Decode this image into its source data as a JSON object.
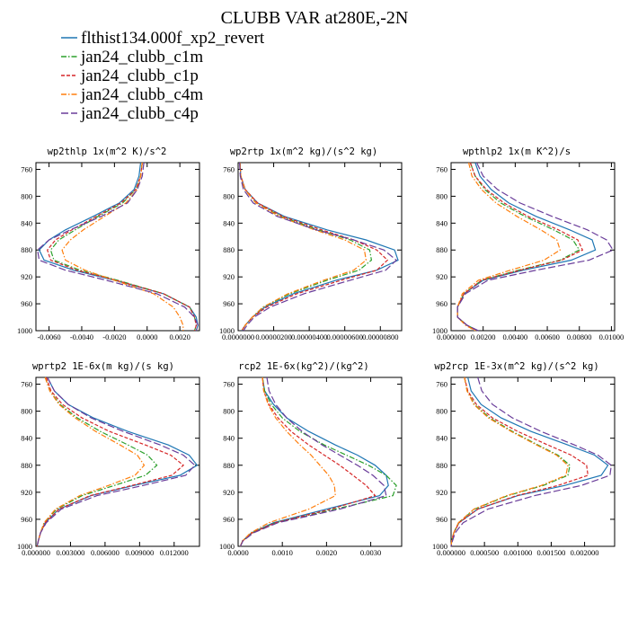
{
  "figure_title": "CLUBB VAR at280E,-2N",
  "legend": [
    {
      "label": "flthist134.000f_xp2_revert",
      "color": "#1f77b4",
      "dash": "solid"
    },
    {
      "label": "jan24_clubb_c1m",
      "color": "#2ca02c",
      "dash": "dashdot"
    },
    {
      "label": "jan24_clubb_c1p",
      "color": "#d62728",
      "dash": "dashed"
    },
    {
      "label": "jan24_clubb_c4m",
      "color": "#ff7f0e",
      "dash": "dashdot"
    },
    {
      "label": "jan24_clubb_c4p",
      "color": "#6a3d9a",
      "dash": "longdash"
    }
  ],
  "chart_data": [
    {
      "type": "line",
      "title": "wp2thlp  1x(m^2 K)/s^2",
      "ylim": [
        1000,
        750
      ],
      "yticks": [
        "760",
        "800",
        "840",
        "880",
        "920",
        "960",
        "1000"
      ],
      "yticks_values": [
        760,
        800,
        840,
        880,
        920,
        960,
        1000
      ],
      "xlim": [
        -0.0068,
        0.0032
      ],
      "xticks": [
        "-0.0060",
        "-0.0040",
        "-0.0020",
        "0.0000",
        "0.0020"
      ],
      "xticks_values": [
        -0.006,
        -0.004,
        -0.002,
        0.0,
        0.002
      ],
      "y": [
        750,
        770,
        790,
        810,
        830,
        850,
        865,
        880,
        895,
        910,
        925,
        945,
        965,
        980,
        992,
        1000
      ],
      "series": [
        {
          "name": "flthist134.000f_xp2_revert",
          "values": [
            -0.0004,
            -0.0005,
            -0.0008,
            -0.0017,
            -0.0033,
            -0.005,
            -0.006,
            -0.0066,
            -0.0063,
            -0.0045,
            -0.002,
            0.001,
            0.0026,
            0.003,
            0.0031,
            0.003
          ]
        },
        {
          "name": "jan24_clubb_c1m",
          "values": [
            -0.0003,
            -0.0004,
            -0.0007,
            -0.0015,
            -0.003,
            -0.0044,
            -0.0054,
            -0.0059,
            -0.0057,
            -0.0041,
            -0.0018,
            0.001,
            0.0026,
            0.0029,
            0.003,
            0.0029
          ]
        },
        {
          "name": "jan24_clubb_c1p",
          "values": [
            -0.0003,
            -0.0004,
            -0.0007,
            -0.0016,
            -0.0031,
            -0.0046,
            -0.0056,
            -0.0061,
            -0.0059,
            -0.0043,
            -0.0019,
            0.001,
            0.0026,
            0.0029,
            0.003,
            0.0029
          ]
        },
        {
          "name": "jan24_clubb_c4m",
          "values": [
            -0.0003,
            -0.0004,
            -0.0006,
            -0.0013,
            -0.0026,
            -0.0039,
            -0.0047,
            -0.0052,
            -0.005,
            -0.0038,
            -0.002,
            0.0004,
            0.0016,
            0.002,
            0.0022,
            0.0022
          ]
        },
        {
          "name": "jan24_clubb_c4p",
          "values": [
            -0.0002,
            -0.0003,
            -0.0006,
            -0.0012,
            -0.0028,
            -0.0047,
            -0.006,
            -0.0067,
            -0.0066,
            -0.005,
            -0.0025,
            0.0006,
            0.0023,
            0.0029,
            0.0031,
            0.003
          ]
        }
      ]
    },
    {
      "type": "line",
      "title": "wp2rtp  1x(m^2 kg)/(s^2 kg)",
      "ylim": [
        1000,
        750
      ],
      "yticks": [
        "760",
        "800",
        "840",
        "880",
        "920",
        "960",
        "1000"
      ],
      "yticks_values": [
        760,
        800,
        840,
        880,
        920,
        960,
        1000
      ],
      "xlim": [
        0.0,
        9.2e-06
      ],
      "xticks": [
        "0.0000000",
        "0.00000200",
        "0.00000400",
        "0.00000600",
        "0.00000800"
      ],
      "xticks_values": [
        0.0,
        2e-06,
        4e-06,
        6e-06,
        8e-06
      ],
      "y": [
        750,
        770,
        790,
        810,
        830,
        850,
        865,
        880,
        895,
        910,
        925,
        945,
        965,
        980,
        992,
        1000
      ],
      "series": [
        {
          "name": "flthist134.000f_xp2_revert",
          "values": [
            1e-07,
            1.5e-07,
            4e-07,
            1.1e-06,
            2.6e-06,
            5e-06,
            7.2e-06,
            8.8e-06,
            9e-06,
            7.8e-06,
            5.5e-06,
            3.1e-06,
            1.5e-06,
            8e-07,
            4e-07,
            2e-07
          ]
        },
        {
          "name": "jan24_clubb_c1m",
          "values": [
            1e-07,
            1.5e-07,
            3.8e-07,
            1e-06,
            2.4e-06,
            4.5e-06,
            6.3e-06,
            7.4e-06,
            7.5e-06,
            6.8e-06,
            5e-06,
            2.9e-06,
            1.4e-06,
            8e-07,
            4e-07,
            2e-07
          ]
        },
        {
          "name": "jan24_clubb_c1p",
          "values": [
            1e-07,
            1.5e-07,
            4e-07,
            1.1e-06,
            2.5e-06,
            4.7e-06,
            6.5e-06,
            7.8e-06,
            8.4e-06,
            7.8e-06,
            5.8e-06,
            3.3e-06,
            1.6e-06,
            8e-07,
            4e-07,
            2e-07
          ]
        },
        {
          "name": "jan24_clubb_c4m",
          "values": [
            1e-07,
            1.5e-07,
            3.8e-07,
            1e-06,
            2.3e-06,
            4.3e-06,
            6e-06,
            7.1e-06,
            7.2e-06,
            6.5e-06,
            4.8e-06,
            2.8e-06,
            1.4e-06,
            8e-07,
            4e-07,
            2e-07
          ]
        },
        {
          "name": "jan24_clubb_c4p",
          "values": [
            8e-08,
            1.2e-07,
            3e-07,
            8.5e-07,
            2.2e-06,
            4.4e-06,
            6.5e-06,
            8.2e-06,
            8.9e-06,
            8.3e-06,
            6.3e-06,
            3.7e-06,
            1.8e-06,
            9e-07,
            5e-07,
            3e-07
          ]
        }
      ]
    },
    {
      "type": "line",
      "title": "wpthlp2  1x(m K^2)/s",
      "ylim": [
        1000,
        750
      ],
      "yticks": [
        "760",
        "800",
        "840",
        "880",
        "920",
        "960",
        "1000"
      ],
      "yticks_values": [
        760,
        800,
        840,
        880,
        920,
        960,
        1000
      ],
      "xlim": [
        0.0,
        0.0102
      ],
      "xticks": [
        "0.000000",
        "0.00200",
        "0.00400",
        "0.00600",
        "0.00800",
        "0.01000"
      ],
      "xticks_values": [
        0.0,
        0.002,
        0.004,
        0.006,
        0.008,
        0.01
      ],
      "y": [
        750,
        770,
        790,
        810,
        830,
        850,
        865,
        880,
        895,
        910,
        925,
        945,
        965,
        980,
        992,
        1000
      ],
      "series": [
        {
          "name": "flthist134.000f_xp2_revert",
          "values": [
            0.0015,
            0.0018,
            0.0025,
            0.0036,
            0.0053,
            0.0074,
            0.0088,
            0.009,
            0.0075,
            0.0045,
            0.002,
            0.0008,
            0.0004,
            0.0004,
            0.001,
            0.0017
          ]
        },
        {
          "name": "jan24_clubb_c1m",
          "values": [
            0.0012,
            0.0015,
            0.0021,
            0.0031,
            0.0046,
            0.0064,
            0.0076,
            0.008,
            0.0068,
            0.0042,
            0.0019,
            0.0008,
            0.0004,
            0.0004,
            0.001,
            0.0016
          ]
        },
        {
          "name": "jan24_clubb_c1p",
          "values": [
            0.0012,
            0.0015,
            0.0022,
            0.0033,
            0.0048,
            0.0067,
            0.0079,
            0.0082,
            0.0069,
            0.0043,
            0.0019,
            0.0008,
            0.0004,
            0.0004,
            0.001,
            0.0016
          ]
        },
        {
          "name": "jan24_clubb_c4m",
          "values": [
            0.0011,
            0.0013,
            0.0019,
            0.0028,
            0.0041,
            0.0056,
            0.0066,
            0.0068,
            0.0058,
            0.0037,
            0.0017,
            0.0007,
            0.0004,
            0.0004,
            0.0009,
            0.0015
          ]
        },
        {
          "name": "jan24_clubb_c4p",
          "values": [
            0.0016,
            0.002,
            0.0029,
            0.0043,
            0.0063,
            0.0085,
            0.0097,
            0.0101,
            0.0086,
            0.0053,
            0.0023,
            0.0009,
            0.0004,
            0.0004,
            0.001,
            0.0017
          ]
        }
      ]
    },
    {
      "type": "line",
      "title": "wprtp2  1E-6x(m kg)/(s kg)",
      "ylim": [
        1000,
        750
      ],
      "yticks": [
        "760",
        "800",
        "840",
        "880",
        "920",
        "960",
        "1000"
      ],
      "yticks_values": [
        760,
        800,
        840,
        880,
        920,
        960,
        1000
      ],
      "xlim": [
        0.0,
        0.0142
      ],
      "xticks": [
        "0.000000",
        "0.003000",
        "0.006000",
        "0.009000",
        "0.012000"
      ],
      "xticks_values": [
        0.0,
        0.003,
        0.006,
        0.009,
        0.012
      ],
      "y": [
        750,
        770,
        790,
        810,
        830,
        850,
        865,
        880,
        895,
        910,
        925,
        945,
        965,
        980,
        992,
        1000
      ],
      "series": [
        {
          "name": "flthist134.000f_xp2_revert",
          "values": [
            0.001,
            0.0016,
            0.0028,
            0.005,
            0.008,
            0.0115,
            0.0133,
            0.014,
            0.0125,
            0.0085,
            0.0048,
            0.002,
            0.0008,
            0.0004,
            0.0002,
            0.0001
          ]
        },
        {
          "name": "jan24_clubb_c1m",
          "values": [
            0.0008,
            0.0012,
            0.0021,
            0.0036,
            0.0056,
            0.008,
            0.0097,
            0.0105,
            0.0095,
            0.0068,
            0.004,
            0.0018,
            0.0007,
            0.0004,
            0.0002,
            0.0001
          ]
        },
        {
          "name": "jan24_clubb_c1p",
          "values": [
            0.0009,
            0.0013,
            0.0023,
            0.004,
            0.0064,
            0.0095,
            0.0117,
            0.0128,
            0.0118,
            0.0083,
            0.0047,
            0.002,
            0.0008,
            0.0004,
            0.0002,
            0.0001
          ]
        },
        {
          "name": "jan24_clubb_c4m",
          "values": [
            0.0008,
            0.0012,
            0.002,
            0.0034,
            0.0052,
            0.0073,
            0.0088,
            0.0094,
            0.0086,
            0.0063,
            0.0038,
            0.0017,
            0.0007,
            0.0004,
            0.0002,
            0.0001
          ]
        },
        {
          "name": "jan24_clubb_c4p",
          "values": [
            0.001,
            0.0016,
            0.0028,
            0.0048,
            0.0076,
            0.0108,
            0.0128,
            0.0138,
            0.013,
            0.0093,
            0.0053,
            0.0022,
            0.0009,
            0.0004,
            0.0002,
            0.0001
          ]
        }
      ]
    },
    {
      "type": "line",
      "title": "rcp2  1E-6x(kg^2)/(kg^2)",
      "ylim": [
        1000,
        750
      ],
      "yticks": [
        "760",
        "800",
        "840",
        "880",
        "920",
        "960",
        "1000"
      ],
      "yticks_values": [
        760,
        800,
        840,
        880,
        920,
        960,
        1000
      ],
      "xlim": [
        0.0,
        0.0037
      ],
      "xticks": [
        "0.0000",
        "0.0010",
        "0.0020",
        "0.0030"
      ],
      "xticks_values": [
        0.0,
        0.001,
        0.002,
        0.003
      ],
      "y": [
        750,
        770,
        790,
        810,
        830,
        850,
        865,
        880,
        895,
        910,
        925,
        945,
        965,
        980,
        992,
        1000
      ],
      "series": [
        {
          "name": "flthist134.000f_xp2_revert",
          "values": [
            0.00055,
            0.0006,
            0.0008,
            0.0011,
            0.0016,
            0.0022,
            0.0027,
            0.0031,
            0.00335,
            0.0034,
            0.0032,
            0.002,
            0.0008,
            0.0003,
            0.0001,
            5e-05
          ]
        },
        {
          "name": "jan24_clubb_c1m",
          "values": [
            0.00055,
            0.0006,
            0.00075,
            0.001,
            0.0014,
            0.00195,
            0.00245,
            0.00295,
            0.00335,
            0.00358,
            0.0035,
            0.0022,
            0.00085,
            0.00032,
            0.0001,
            5e-05
          ]
        },
        {
          "name": "jan24_clubb_c1p",
          "values": [
            0.00055,
            0.00058,
            0.0007,
            0.0009,
            0.0012,
            0.0016,
            0.00195,
            0.0023,
            0.0026,
            0.0029,
            0.0031,
            0.0021,
            0.00085,
            0.00032,
            0.0001,
            5e-05
          ]
        },
        {
          "name": "jan24_clubb_c4m",
          "values": [
            0.00055,
            0.00058,
            0.00068,
            0.00085,
            0.0011,
            0.0014,
            0.00165,
            0.00185,
            0.00205,
            0.00218,
            0.0022,
            0.0016,
            0.0007,
            0.00028,
            0.0001,
            5e-05
          ]
        },
        {
          "name": "jan24_clubb_c4p",
          "values": [
            0.00065,
            0.0007,
            0.00085,
            0.0011,
            0.00145,
            0.0019,
            0.0023,
            0.0027,
            0.00305,
            0.0033,
            0.00335,
            0.0023,
            0.0009,
            0.00035,
            0.00011,
            5e-05
          ]
        }
      ]
    },
    {
      "type": "line",
      "title": "wp2rcp  1E-3x(m^2 kg)/(s^2 kg)",
      "ylim": [
        1000,
        750
      ],
      "yticks": [
        "760",
        "800",
        "840",
        "880",
        "920",
        "960",
        "1000"
      ],
      "yticks_values": [
        760,
        800,
        840,
        880,
        920,
        960,
        1000
      ],
      "xlim": [
        0.0,
        0.00245
      ],
      "xticks": [
        "0.000000",
        "0.000500",
        "0.001000",
        "0.001500",
        "0.002000"
      ],
      "xticks_values": [
        0.0,
        0.0005,
        0.001,
        0.0015,
        0.002
      ],
      "y": [
        750,
        770,
        790,
        810,
        830,
        850,
        865,
        880,
        895,
        910,
        925,
        945,
        965,
        980,
        992,
        1000
      ],
      "series": [
        {
          "name": "flthist134.000f_xp2_revert",
          "values": [
            0.00025,
            0.0003,
            0.00045,
            0.00075,
            0.0012,
            0.00175,
            0.00215,
            0.00235,
            0.00225,
            0.0017,
            0.001,
            0.0004,
            0.00012,
            4e-05,
            1e-05,
            0.0
          ]
        },
        {
          "name": "jan24_clubb_c1m",
          "values": [
            0.0002,
            0.00024,
            0.00035,
            0.00058,
            0.00092,
            0.0013,
            0.0016,
            0.00178,
            0.00175,
            0.00138,
            0.00085,
            0.00035,
            0.00011,
            4e-05,
            1e-05,
            0.0
          ]
        },
        {
          "name": "jan24_clubb_c1p",
          "values": [
            0.0002,
            0.00025,
            0.00038,
            0.00062,
            0.001,
            0.00145,
            0.0018,
            0.00203,
            0.00205,
            0.0016,
            0.00098,
            0.0004,
            0.00012,
            4e-05,
            1e-05,
            0.0
          ]
        },
        {
          "name": "jan24_clubb_c4m",
          "values": [
            0.0002,
            0.00024,
            0.00034,
            0.00056,
            0.0009,
            0.00128,
            0.00158,
            0.00175,
            0.00172,
            0.00135,
            0.00083,
            0.00034,
            0.00011,
            4e-05,
            1e-05,
            0.0
          ]
        },
        {
          "name": "jan24_clubb_c4p",
          "values": [
            0.0004,
            0.00046,
            0.00062,
            0.00092,
            0.00135,
            0.00185,
            0.0022,
            0.0024,
            0.00238,
            0.00195,
            0.00125,
            0.00055,
            0.00018,
            6e-05,
            2e-05,
            0.0
          ]
        }
      ]
    }
  ]
}
